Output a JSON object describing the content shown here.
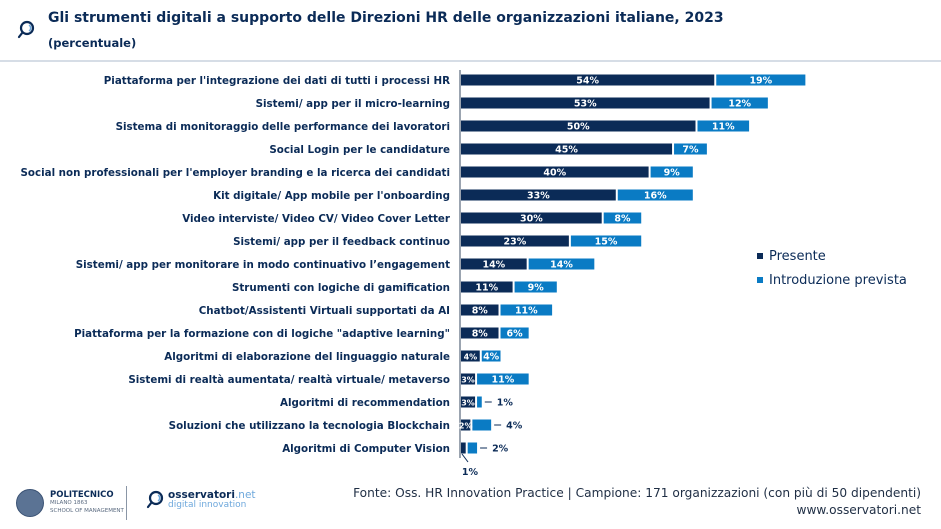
{
  "header": {
    "title": "Gli strumenti digitali a supporto delle Direzioni HR delle organizzazioni italiane, 2023",
    "subtitle": "(percentuale)",
    "icon": "magnifier-icon"
  },
  "colors": {
    "presente": "#0b2b57",
    "introduzione_prevista": "#0a7bc4",
    "text": "#0b2b57"
  },
  "chart_data": {
    "type": "bar",
    "orientation": "horizontal",
    "stacked": true,
    "title": "Gli strumenti digitali a supporto delle Direzioni HR delle organizzazioni italiane, 2023",
    "subtitle": "(percentuale)",
    "xlabel": "",
    "ylabel": "",
    "xlim": [
      0,
      100
    ],
    "grid": false,
    "legend_position": "right",
    "categories": [
      "Piattaforma per l'integrazione dei dati di tutti i processi HR",
      "Sistemi/ app per il micro-learning",
      "Sistema di monitoraggio delle performance dei lavoratori",
      "Social Login per le candidature",
      "Social non professionali per l'employer branding e la ricerca dei candidati",
      "Kit digitale/ App mobile per l'onboarding",
      "Video interviste/ Video CV/ Video Cover Letter",
      "Sistemi/ app per il feedback continuo",
      "Sistemi/ app per monitorare in modo continuativo l’engagement",
      "Strumenti con logiche di gamification",
      "Chatbot/Assistenti Virtuali supportati da AI",
      "Piattaforma per la formazione con di logiche \"adaptive learning\"",
      "Algoritmi di elaborazione del linguaggio naturale",
      "Sistemi di realtà aumentata/ realtà virtuale/ metaverso",
      "Algoritmi di recommendation",
      "Soluzioni che utilizzano la tecnologia Blockchain",
      "Algoritmi di Computer Vision"
    ],
    "series": [
      {
        "name": "Presente",
        "values": [
          54,
          53,
          50,
          45,
          40,
          33,
          30,
          23,
          14,
          11,
          8,
          8,
          4,
          3,
          3,
          2,
          1
        ],
        "labels": [
          "54%",
          "53%",
          "50%",
          "45%",
          "40%",
          "33%",
          "30%",
          "23%",
          "14%",
          "11%",
          "8%",
          "8%",
          "4%",
          "3%",
          "3%",
          "2%",
          "1%"
        ]
      },
      {
        "name": "Introduzione prevista",
        "values": [
          19,
          12,
          11,
          7,
          9,
          16,
          8,
          15,
          14,
          9,
          11,
          6,
          4,
          11,
          1,
          4,
          2
        ],
        "labels": [
          "19%",
          "12%",
          "11%",
          "7%",
          "9%",
          "16%",
          "8%",
          "15%",
          "14%",
          "9%",
          "11%",
          "6%",
          "4%",
          "11%",
          "1%",
          "4%",
          "2%"
        ]
      }
    ]
  },
  "legend": {
    "items": [
      "Presente",
      "Introduzione prevista"
    ]
  },
  "footer": {
    "source": "Fonte: Oss. HR Innovation Practice | Campione: 171 organizzazioni (con più di 50 dipendenti)",
    "website": "www.osservatori.net",
    "logo_politecnico": {
      "name": "POLITECNICO",
      "line2": "MILANO 1863",
      "line3": "SCHOOL OF MANAGEMENT"
    },
    "logo_osservatori": {
      "name": "osservatori",
      "suffix": ".net",
      "tagline": "digital innovation"
    }
  }
}
